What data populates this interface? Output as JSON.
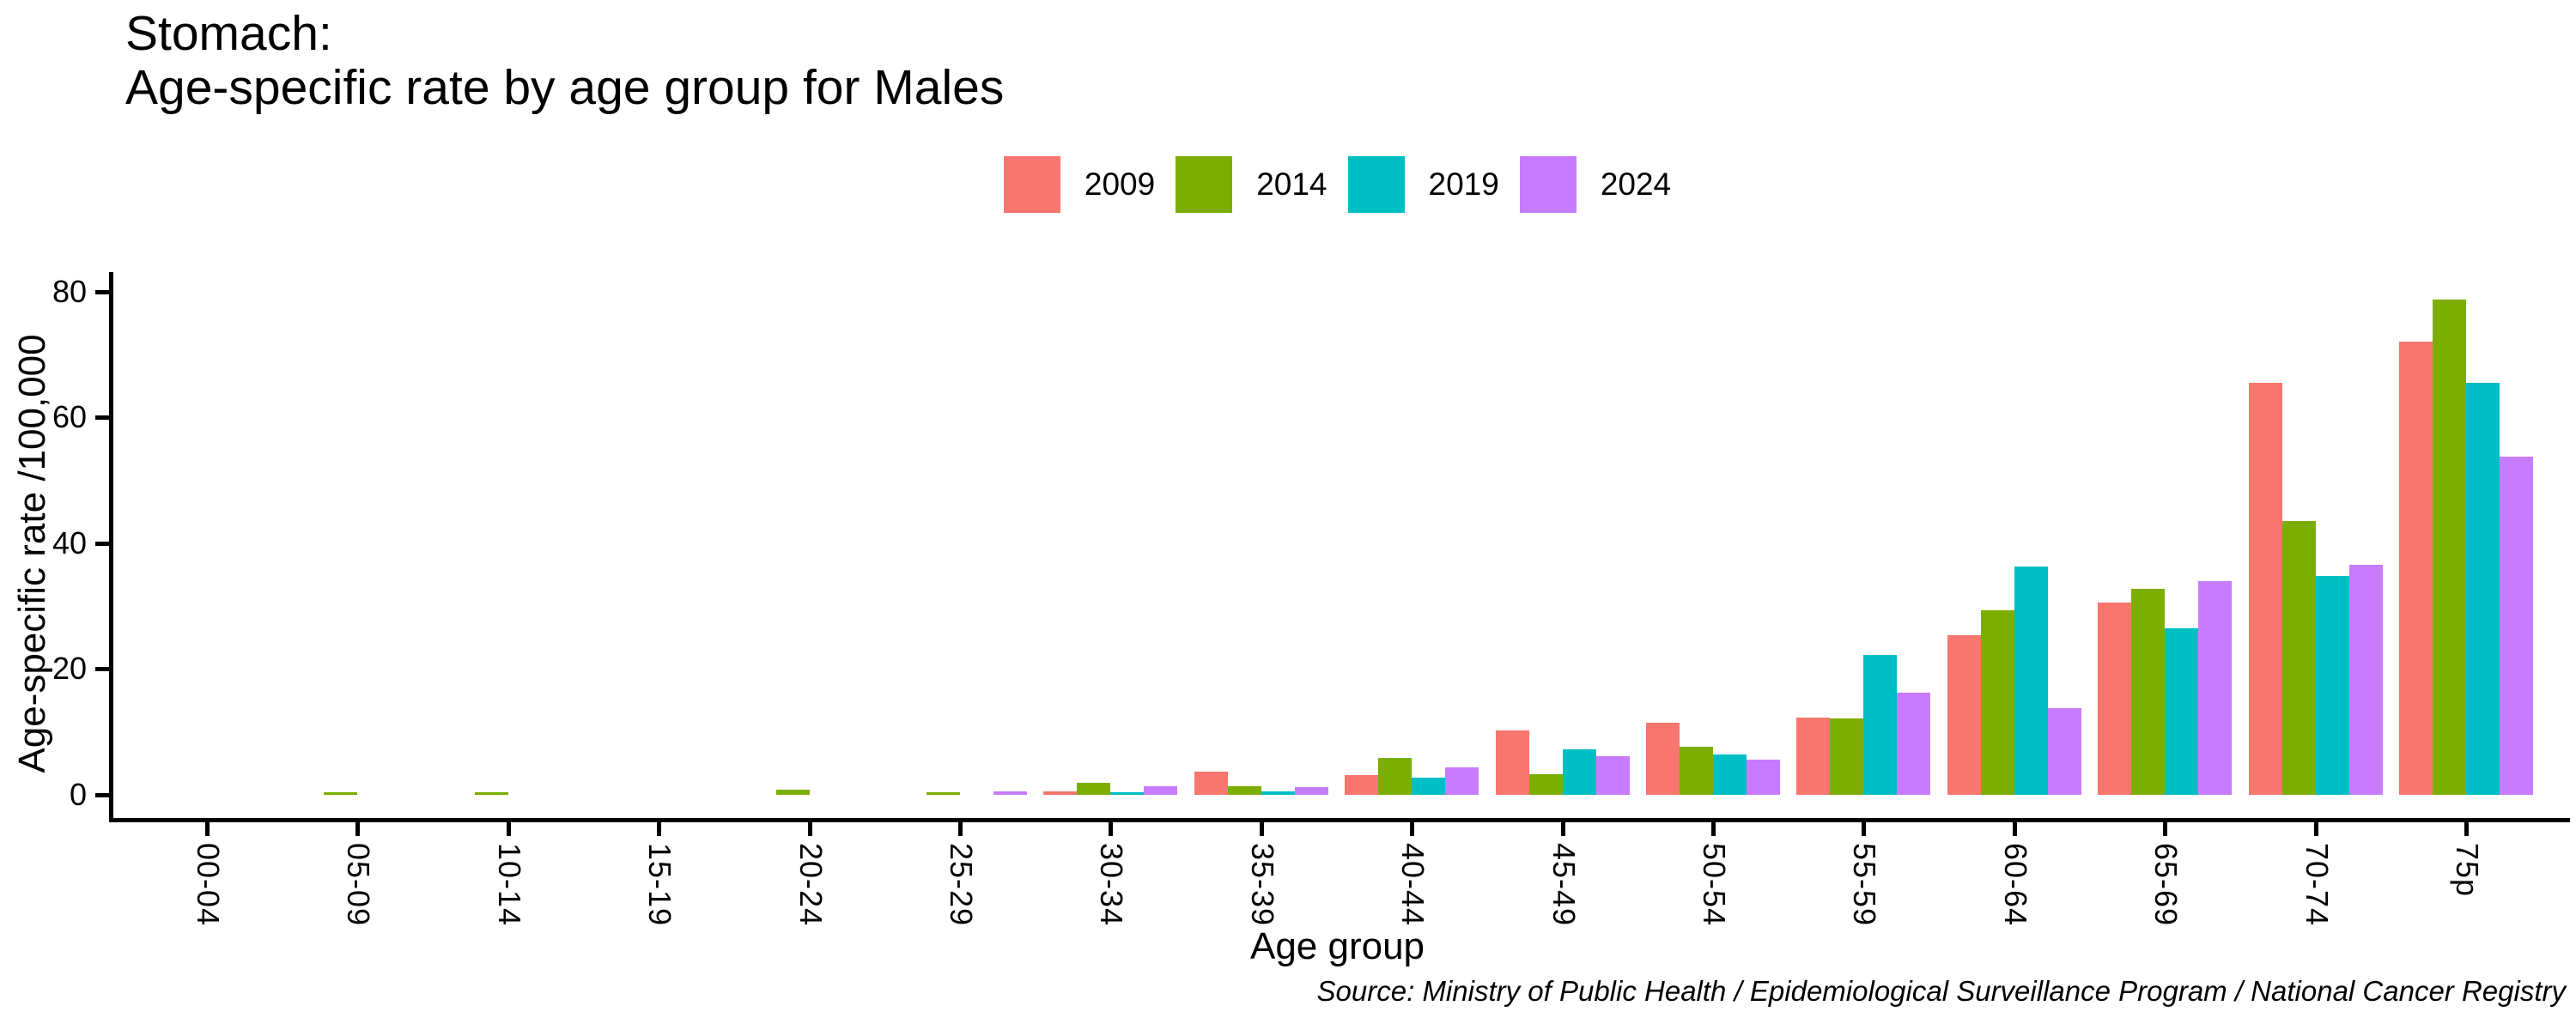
{
  "title": {
    "line1": "Stomach:",
    "line2": "Age-specific rate by age group for Males"
  },
  "legend": {
    "items": [
      {
        "label": "2009",
        "color": "#F8766D"
      },
      {
        "label": "2014",
        "color": "#7CAE00"
      },
      {
        "label": "2019",
        "color": "#00BFC4"
      },
      {
        "label": "2024",
        "color": "#C77CFF"
      }
    ]
  },
  "axes": {
    "y_label": "Age-specific rate /100,000",
    "x_label": "Age group",
    "y_ticks": [
      0,
      20,
      40,
      60,
      80
    ]
  },
  "source_note": "Source: Ministry of Public Health / Epidemiological Surveillance Program / National Cancer Registry",
  "chart_data": {
    "type": "bar",
    "grouped": true,
    "title": "Stomach: Age-specific rate by age group for Males",
    "xlabel": "Age group",
    "ylabel": "Age-specific rate /100,000",
    "ylim": [
      0,
      80
    ],
    "grid": false,
    "legend_position": "top-center",
    "categories": [
      "00-04",
      "05-09",
      "10-14",
      "15-19",
      "20-24",
      "25-29",
      "30-34",
      "35-39",
      "40-44",
      "45-49",
      "50-54",
      "55-59",
      "60-64",
      "65-69",
      "70-74",
      "75p"
    ],
    "series": [
      {
        "name": "2009",
        "color": "#F8766D",
        "values": [
          0,
          0,
          0,
          0,
          0,
          0,
          0.5,
          3.7,
          3.1,
          10.2,
          11.5,
          12.3,
          25.4,
          30.5,
          65.5,
          72.0
        ]
      },
      {
        "name": "2014",
        "color": "#7CAE00",
        "values": [
          0,
          0.4,
          0.4,
          0,
          0.8,
          0.4,
          1.9,
          1.4,
          5.8,
          3.3,
          7.6,
          12.2,
          29.3,
          32.7,
          43.5,
          78.7
        ]
      },
      {
        "name": "2019",
        "color": "#00BFC4",
        "values": [
          0,
          0,
          0,
          0,
          0,
          0,
          0.4,
          0.6,
          2.7,
          7.2,
          6.4,
          22.2,
          36.3,
          26.4,
          34.8,
          65.5
        ]
      },
      {
        "name": "2024",
        "color": "#C77CFF",
        "values": [
          0,
          0,
          0,
          0,
          0,
          0.5,
          1.3,
          1.2,
          4.3,
          6.2,
          5.6,
          16.3,
          13.8,
          34.0,
          36.6,
          53.8
        ]
      }
    ]
  }
}
